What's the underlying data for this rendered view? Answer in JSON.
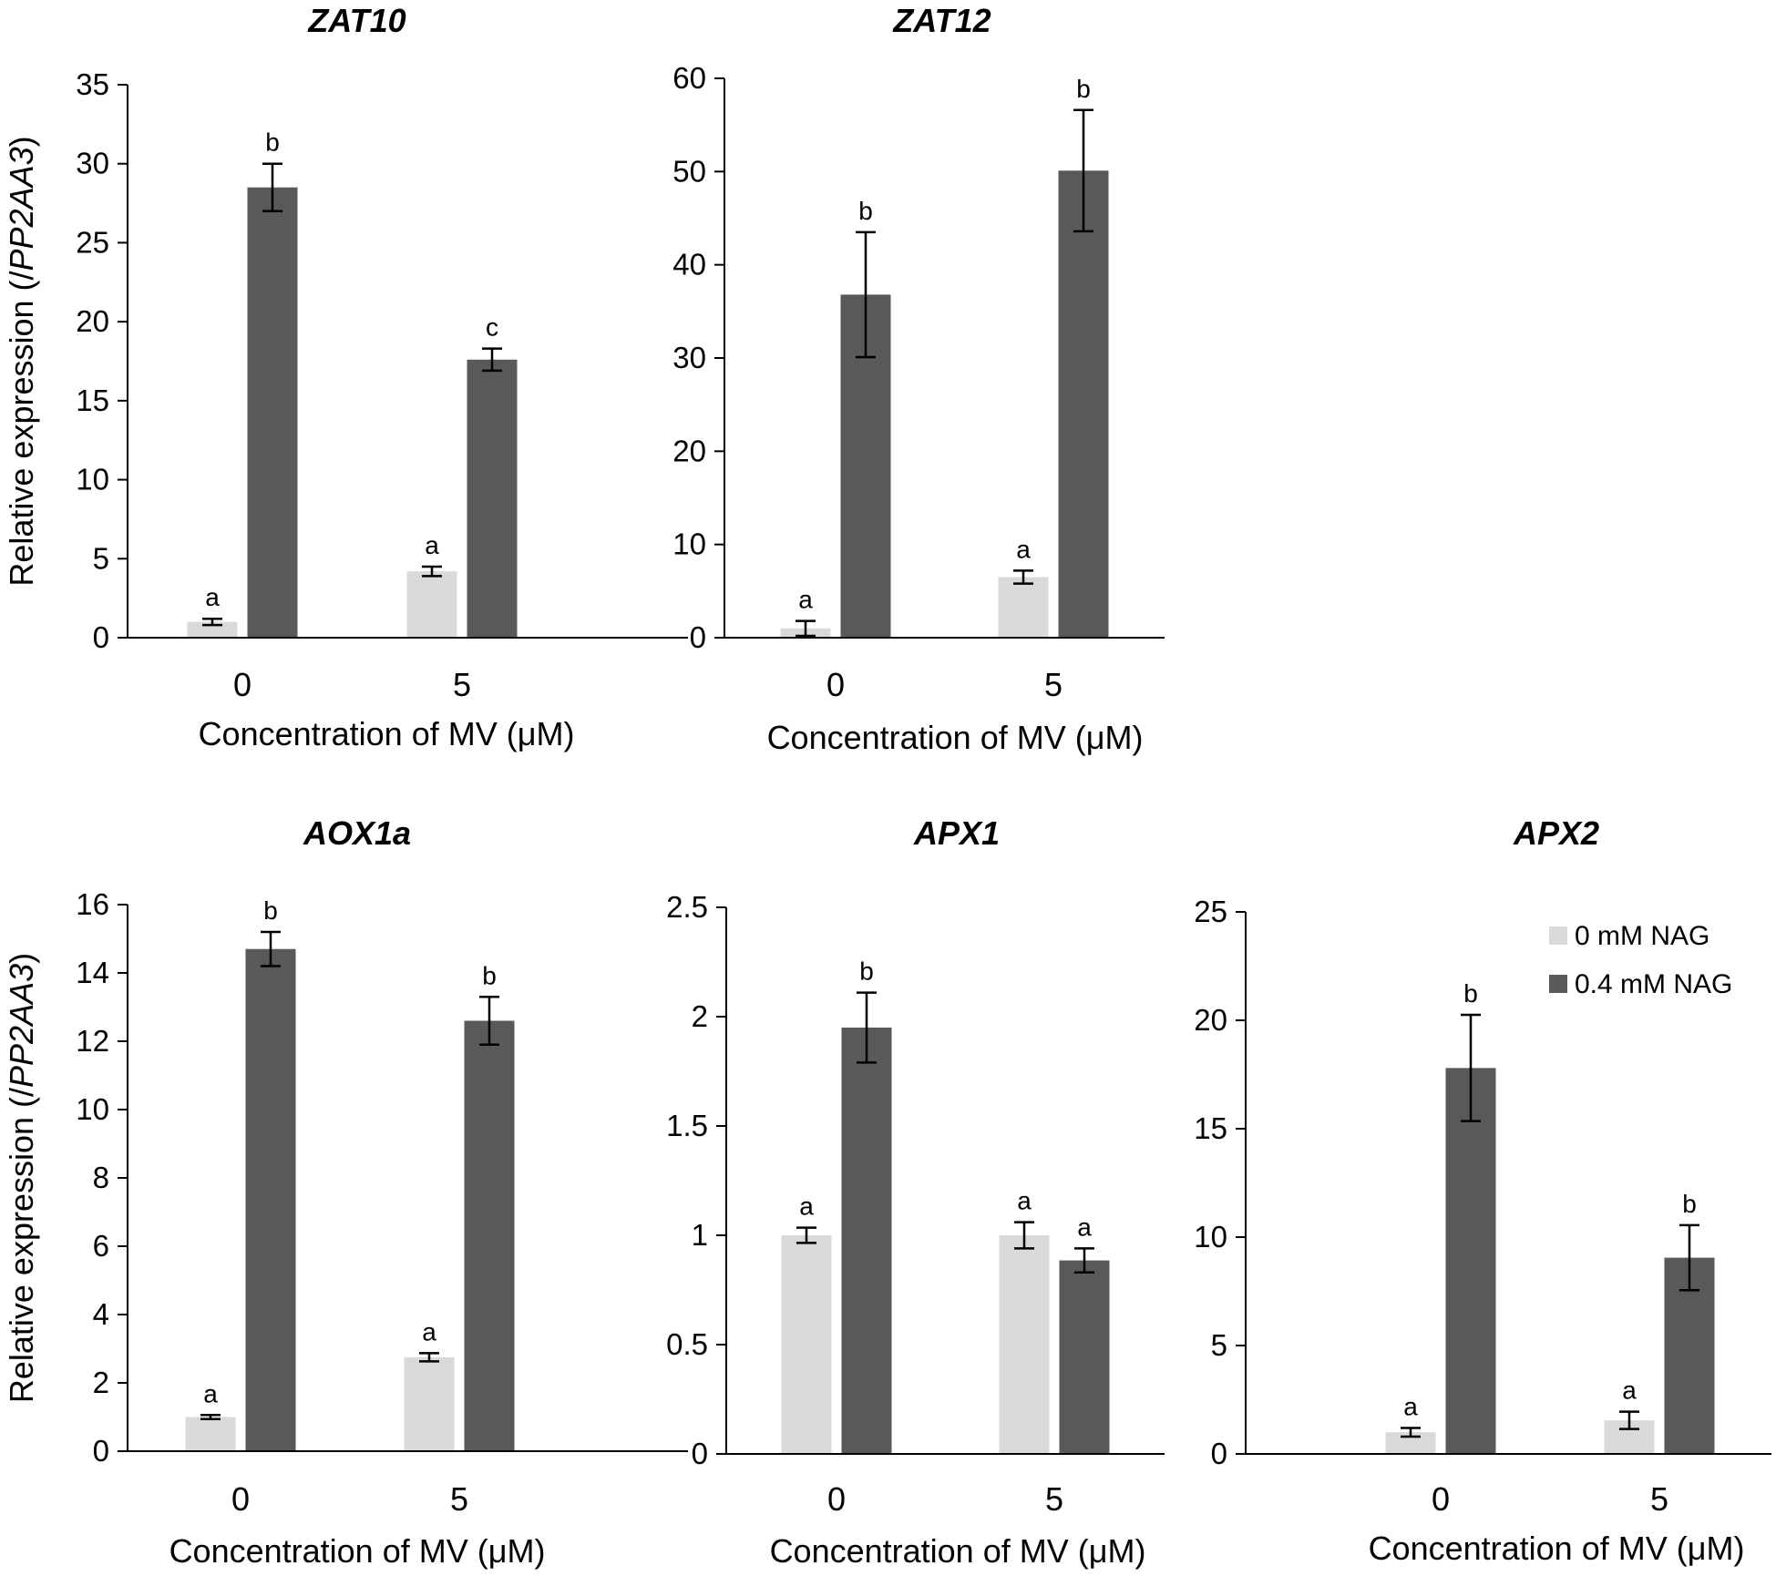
{
  "chart_data": [
    {
      "type": "bar",
      "title": "ZAT10",
      "xlabel": "Concentration of MV (μM)",
      "ylabel_prefix": "Relative expression (/",
      "ylabel_italic": "PP2AA3",
      "ylabel_suffix": ")",
      "categories": [
        "0",
        "5"
      ],
      "ylim": [
        0,
        35
      ],
      "yticks": [
        0,
        5,
        10,
        15,
        20,
        25,
        30,
        35
      ],
      "series": [
        {
          "name": "0 mM NAG",
          "color": "#d9d9d9",
          "values": [
            1.0,
            4.2
          ],
          "errors": [
            0.2,
            0.3
          ],
          "letters": [
            "a",
            "a"
          ]
        },
        {
          "name": "0.4 mM NAG",
          "color": "#595959",
          "values": [
            28.5,
            17.6
          ],
          "errors": [
            1.5,
            0.7
          ],
          "letters": [
            "b",
            "c"
          ]
        }
      ]
    },
    {
      "type": "bar",
      "title": "ZAT12",
      "xlabel": "Concentration of MV (μM)",
      "categories": [
        "0",
        "5"
      ],
      "ylim": [
        0,
        60
      ],
      "yticks": [
        0,
        10,
        20,
        30,
        40,
        50,
        60
      ],
      "series": [
        {
          "name": "0 mM NAG",
          "color": "#d9d9d9",
          "values": [
            1.0,
            6.5
          ],
          "errors": [
            0.8,
            0.7
          ],
          "letters": [
            "a",
            "a"
          ]
        },
        {
          "name": "0.4 mM NAG",
          "color": "#595959",
          "values": [
            36.8,
            50.1
          ],
          "errors": [
            6.7,
            6.5
          ],
          "letters": [
            "b",
            "b"
          ]
        }
      ]
    },
    {
      "type": "bar",
      "title": "AOX1a",
      "xlabel": "Concentration of MV (μM)",
      "ylabel_prefix": "Relative expression (/",
      "ylabel_italic": "PP2AA3",
      "ylabel_suffix": ")",
      "categories": [
        "0",
        "5"
      ],
      "ylim": [
        0,
        16
      ],
      "yticks": [
        0,
        2,
        4,
        6,
        8,
        10,
        12,
        14,
        16
      ],
      "series": [
        {
          "name": "0 mM NAG",
          "color": "#d9d9d9",
          "values": [
            1.0,
            2.75
          ],
          "errors": [
            0.06,
            0.12
          ],
          "letters": [
            "a",
            "a"
          ]
        },
        {
          "name": "0.4 mM NAG",
          "color": "#595959",
          "values": [
            14.7,
            12.6
          ],
          "errors": [
            0.5,
            0.7
          ],
          "letters": [
            "b",
            "b"
          ]
        }
      ]
    },
    {
      "type": "bar",
      "title": "APX1",
      "xlabel": "Concentration of MV (μM)",
      "categories": [
        "0",
        "5"
      ],
      "ylim": [
        0,
        2.5
      ],
      "yticks": [
        0,
        0.5,
        1,
        1.5,
        2,
        2.5
      ],
      "series": [
        {
          "name": "0 mM NAG",
          "color": "#d9d9d9",
          "values": [
            1.0,
            1.0
          ],
          "errors": [
            0.035,
            0.06
          ],
          "letters": [
            "a",
            "a"
          ]
        },
        {
          "name": "0.4 mM NAG",
          "color": "#595959",
          "values": [
            1.95,
            0.885
          ],
          "errors": [
            0.16,
            0.055
          ],
          "letters": [
            "b",
            "a"
          ]
        }
      ]
    },
    {
      "type": "bar",
      "title": "APX2",
      "xlabel": "Concentration of MV (μM)",
      "categories": [
        "0",
        "5"
      ],
      "ylim": [
        0,
        25
      ],
      "yticks": [
        0,
        5,
        10,
        15,
        20,
        25
      ],
      "legend": "top-right",
      "series": [
        {
          "name": "0 mM NAG",
          "color": "#d9d9d9",
          "values": [
            1.0,
            1.55
          ],
          "errors": [
            0.2,
            0.4
          ],
          "letters": [
            "a",
            "a"
          ]
        },
        {
          "name": "0.4 mM NAG",
          "color": "#595959",
          "values": [
            17.8,
            9.05
          ],
          "errors": [
            2.45,
            1.5
          ],
          "letters": [
            "b",
            "b"
          ]
        }
      ]
    }
  ]
}
